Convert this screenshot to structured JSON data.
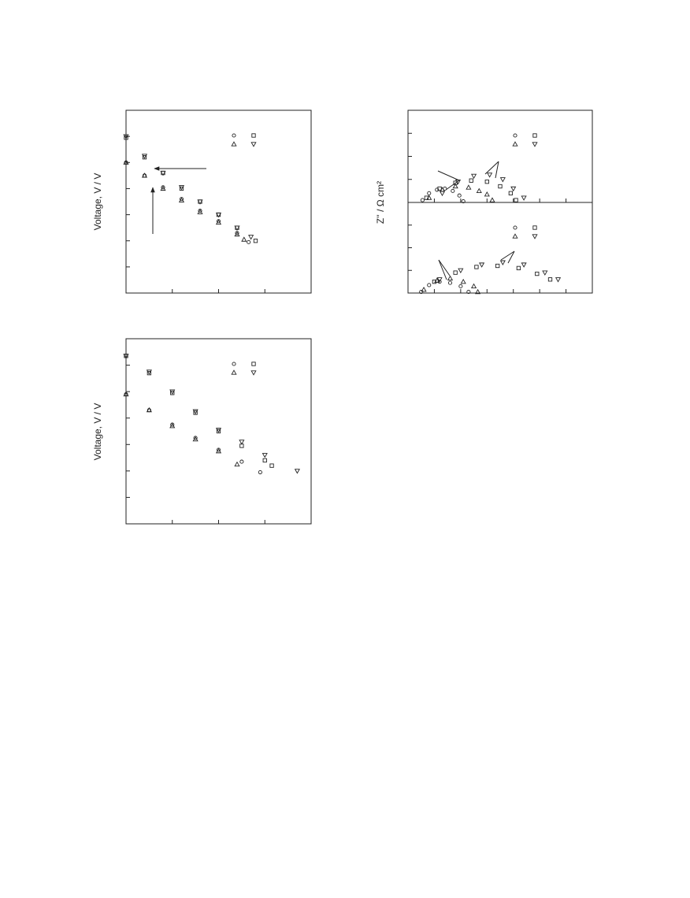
{
  "chart_data": [
    {
      "type": "scatter",
      "y_label": "Voltage, V / V",
      "xlim": [
        0,
        4
      ],
      "ylim": [
        0,
        7
      ],
      "xticks": [
        1,
        2,
        3
      ],
      "yticks": [
        1,
        2,
        3,
        4,
        5,
        6
      ],
      "legend": "upper right",
      "color": "#222",
      "series": [
        {
          "marker": "circle",
          "x": [
            0,
            0.4,
            0.8,
            1.2,
            1.6,
            2.0,
            2.4,
            2.65
          ],
          "values": [
            5.0,
            4.5,
            4.05,
            3.6,
            3.15,
            2.75,
            2.3,
            1.95
          ]
        },
        {
          "marker": "square",
          "x": [
            0,
            0.4,
            0.8,
            1.2,
            1.6,
            2.0,
            2.4,
            2.8
          ],
          "values": [
            5.95,
            5.2,
            4.6,
            4.0,
            3.5,
            3.0,
            2.5,
            2.0
          ]
        },
        {
          "marker": "triangle-up",
          "x": [
            0,
            0.4,
            0.8,
            1.2,
            1.6,
            2.0,
            2.4,
            2.55
          ],
          "values": [
            5.0,
            4.5,
            4.0,
            3.55,
            3.1,
            2.7,
            2.25,
            2.05
          ]
        },
        {
          "marker": "triangle-down",
          "x": [
            0,
            0.4,
            0.8,
            1.2,
            1.6,
            2.0,
            2.4,
            2.7
          ],
          "values": [
            6.0,
            5.25,
            4.6,
            4.05,
            3.5,
            3.0,
            2.5,
            2.15
          ]
        }
      ]
    },
    {
      "type": "scatter",
      "y_label": "Z'' / Ω cm²",
      "xlim": [
        0,
        7
      ],
      "ylim": [
        0,
        4
      ],
      "xticks": [
        1,
        2,
        3,
        4,
        5,
        6
      ],
      "yticks": [
        1,
        2,
        3
      ],
      "legend": "upper right",
      "color": "#222",
      "series": [
        {
          "marker": "circle",
          "x": [
            0.55,
            0.8,
            1.1,
            1.4,
            1.7,
            1.95,
            2.1
          ],
          "values": [
            0.1,
            0.4,
            0.55,
            0.6,
            0.5,
            0.3,
            0.05
          ]
        },
        {
          "marker": "square",
          "x": [
            0.7,
            1.2,
            1.8,
            2.4,
            3.0,
            3.5,
            3.9,
            4.1
          ],
          "values": [
            0.2,
            0.6,
            0.85,
            0.95,
            0.9,
            0.7,
            0.4,
            0.1
          ]
        },
        {
          "marker": "triangle-up",
          "x": [
            0.8,
            1.3,
            1.8,
            2.3,
            2.7,
            3.0,
            3.2
          ],
          "values": [
            0.2,
            0.55,
            0.7,
            0.65,
            0.5,
            0.35,
            0.1
          ]
        },
        {
          "marker": "triangle-down",
          "x": [
            1.3,
            1.9,
            2.5,
            3.1,
            3.6,
            4.0,
            4.4
          ],
          "values": [
            0.4,
            0.9,
            1.15,
            1.2,
            1.0,
            0.6,
            0.2
          ]
        }
      ]
    },
    {
      "type": "scatter",
      "xlim": [
        0,
        7
      ],
      "ylim": [
        0,
        4
      ],
      "xticks": [
        1,
        2,
        3,
        4,
        5,
        6
      ],
      "yticks": [
        1,
        2,
        3
      ],
      "legend": "upper right",
      "color": "#222",
      "series": [
        {
          "marker": "circle",
          "x": [
            0.5,
            0.8,
            1.2,
            1.6,
            2.0,
            2.3
          ],
          "values": [
            0.05,
            0.35,
            0.5,
            0.45,
            0.3,
            0.05
          ]
        },
        {
          "marker": "square",
          "x": [
            1.0,
            1.8,
            2.6,
            3.4,
            4.2,
            4.9,
            5.4
          ],
          "values": [
            0.5,
            0.9,
            1.15,
            1.2,
            1.1,
            0.85,
            0.6
          ]
        },
        {
          "marker": "triangle-up",
          "x": [
            0.6,
            1.1,
            1.6,
            2.1,
            2.5,
            2.65
          ],
          "values": [
            0.15,
            0.55,
            0.65,
            0.5,
            0.3,
            0.05
          ]
        },
        {
          "marker": "triangle-down",
          "x": [
            1.2,
            2.0,
            2.8,
            3.6,
            4.4,
            5.2,
            5.7
          ],
          "values": [
            0.6,
            1.0,
            1.25,
            1.35,
            1.25,
            0.9,
            0.6
          ]
        }
      ]
    },
    {
      "type": "scatter",
      "y_label": "Voltage, V / V",
      "xlim": [
        0,
        4
      ],
      "ylim": [
        0,
        7
      ],
      "xticks": [
        1,
        2,
        3
      ],
      "yticks": [
        1,
        2,
        3,
        4,
        5,
        6
      ],
      "legend": "upper right",
      "color": "#222",
      "series": [
        {
          "marker": "circle",
          "x": [
            0,
            0.5,
            1,
            1.5,
            2,
            2.5,
            2.9
          ],
          "values": [
            4.9,
            4.3,
            3.75,
            3.25,
            2.8,
            2.35,
            1.95
          ]
        },
        {
          "marker": "square",
          "x": [
            0,
            0.5,
            1,
            1.5,
            2,
            2.5,
            3,
            3.15
          ],
          "values": [
            6.35,
            5.7,
            4.95,
            4.2,
            3.5,
            2.95,
            2.4,
            2.2
          ]
        },
        {
          "marker": "triangle-up",
          "x": [
            0,
            0.5,
            1,
            1.5,
            2,
            2.4
          ],
          "values": [
            4.9,
            4.3,
            3.7,
            3.2,
            2.75,
            2.25
          ]
        },
        {
          "marker": "triangle-down",
          "x": [
            0,
            0.5,
            1,
            1.5,
            2,
            2.5,
            3,
            3.7
          ],
          "values": [
            6.35,
            5.75,
            5.0,
            4.25,
            3.55,
            3.1,
            2.6,
            2.0
          ]
        }
      ]
    }
  ]
}
